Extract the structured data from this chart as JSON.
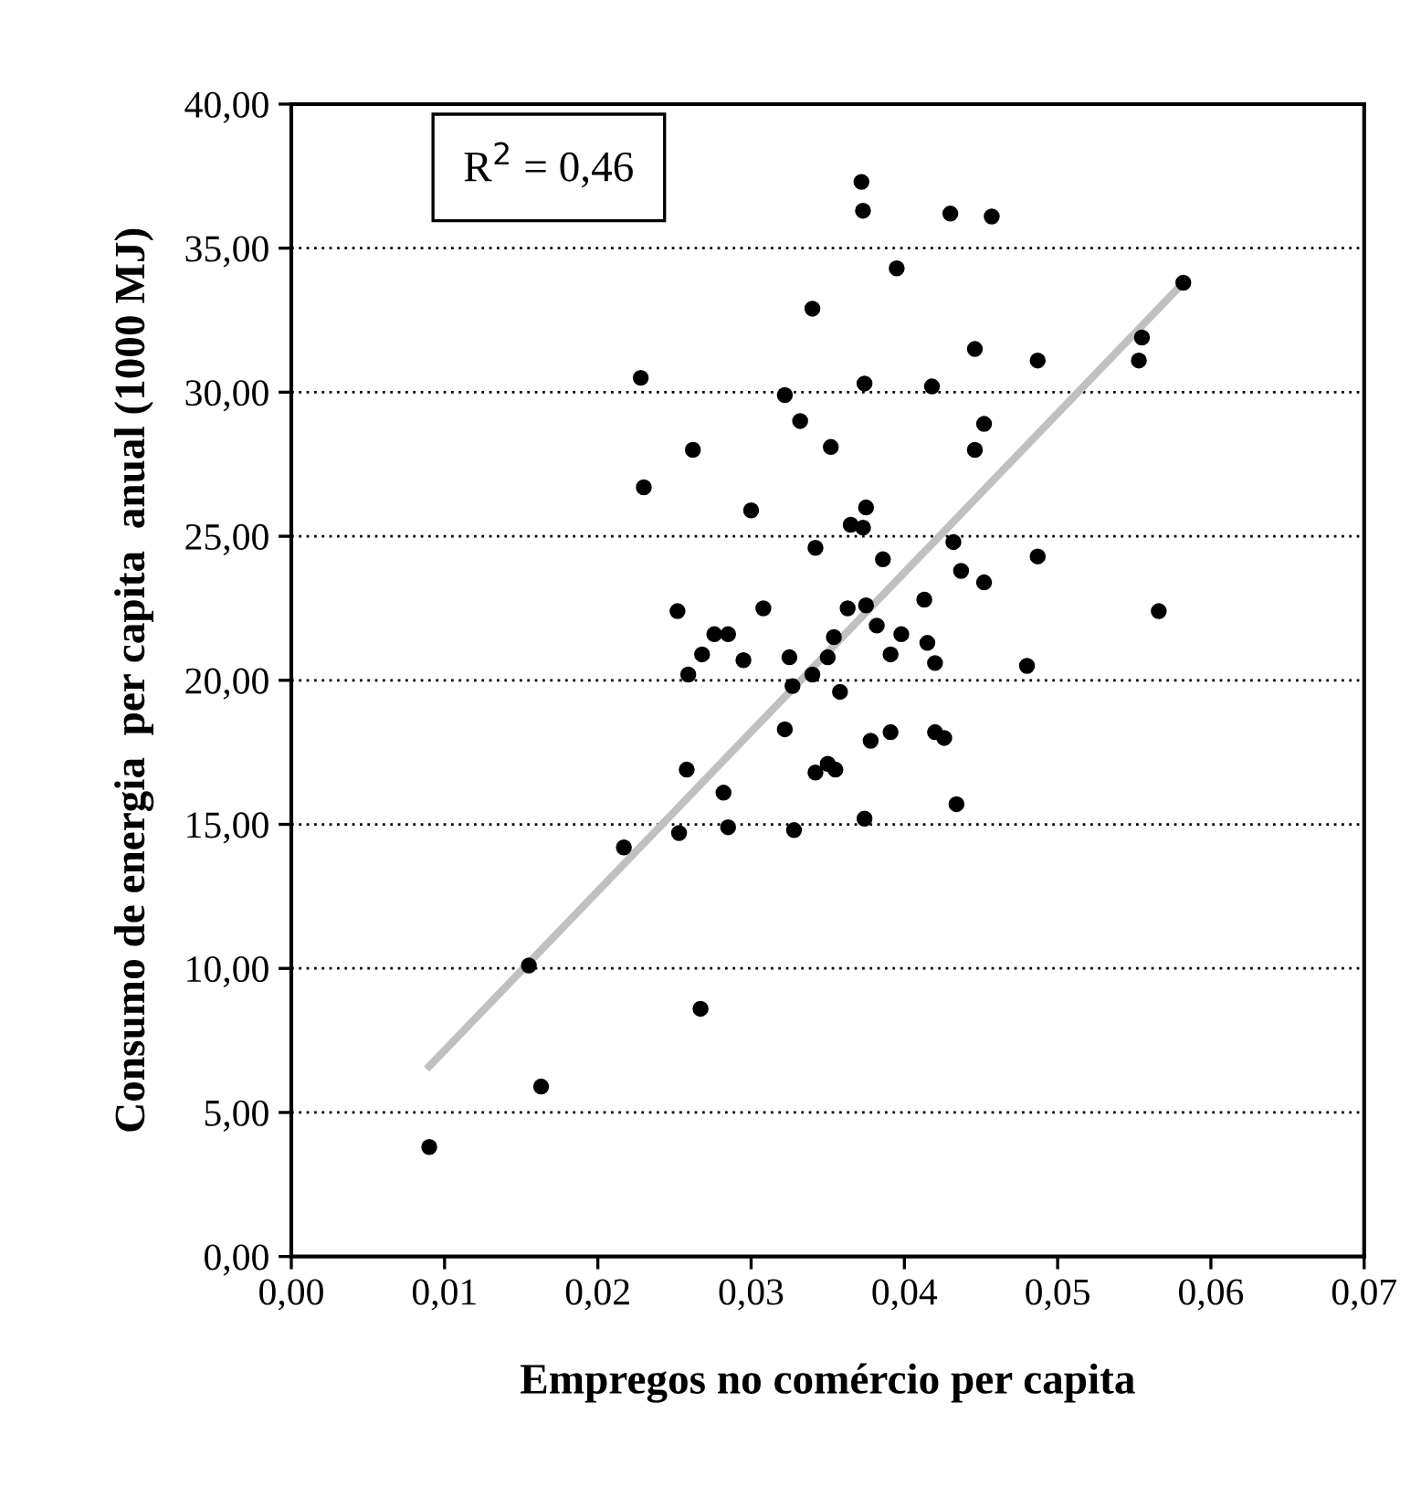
{
  "chart_data": {
    "type": "scatter",
    "xlabel": "Empregos no comércio per capita",
    "ylabel": "Consumo de energia  per capita  anual (1000 MJ)",
    "annotations": [
      "R$^{2}$ = 0,46"
    ],
    "xlim": [
      0,
      0.07
    ],
    "xticks": [
      {
        "value": 0,
        "label": "0,00"
      },
      {
        "value": 0.01,
        "label": "0,01"
      },
      {
        "value": 0.02,
        "label": "0,02"
      },
      {
        "value": 0.03,
        "label": "0,03"
      },
      {
        "value": 0.04,
        "label": "0,04"
      },
      {
        "value": 0.05,
        "label": "0,05"
      },
      {
        "value": 0.06,
        "label": "0,06"
      },
      {
        "value": 0.07,
        "label": "0,07"
      }
    ],
    "ylim": [
      0,
      40
    ],
    "yticks": [
      {
        "value": 0,
        "label": "0,00"
      },
      {
        "value": 5,
        "label": "5,00"
      },
      {
        "value": 10,
        "label": "10,00"
      },
      {
        "value": 15,
        "label": "15,00"
      },
      {
        "value": 20,
        "label": "20,00"
      },
      {
        "value": 25,
        "label": "25,00"
      },
      {
        "value": 30,
        "label": "30,00"
      },
      {
        "value": 35,
        "label": "35,00"
      },
      {
        "value": 40,
        "label": "40,00"
      }
    ],
    "grid": "y",
    "marker": "circle",
    "series": [
      {
        "color": "#000000",
        "x": [
          0.009,
          0.0163,
          0.0155,
          0.0267,
          0.0217,
          0.0253,
          0.0258,
          0.0259,
          0.0252,
          0.0268,
          0.0276,
          0.0285,
          0.0282,
          0.0285,
          0.0295,
          0.0308,
          0.03,
          0.0228,
          0.023,
          0.0262,
          0.0322,
          0.0332,
          0.034,
          0.0352,
          0.0342,
          0.0325,
          0.0322,
          0.0328,
          0.0327,
          0.034,
          0.0342,
          0.035,
          0.035,
          0.0355,
          0.0354,
          0.0358,
          0.0363,
          0.0365,
          0.0372,
          0.0373,
          0.0374,
          0.0375,
          0.0373,
          0.0375,
          0.0374,
          0.0378,
          0.0382,
          0.0386,
          0.0391,
          0.0391,
          0.0395,
          0.0398,
          0.0413,
          0.0415,
          0.0418,
          0.042,
          0.042,
          0.0426,
          0.043,
          0.0432,
          0.0434,
          0.0437,
          0.0446,
          0.0446,
          0.0452,
          0.0452,
          0.0457,
          0.048,
          0.0487,
          0.0487,
          0.0553,
          0.0555,
          0.0566,
          0.0582
        ],
        "values": [
          3.8,
          5.9,
          10.1,
          8.6,
          14.2,
          14.7,
          16.9,
          20.2,
          22.4,
          20.9,
          21.6,
          21.6,
          16.1,
          14.9,
          20.7,
          22.5,
          25.9,
          30.5,
          26.7,
          28.0,
          29.9,
          29.0,
          32.9,
          28.1,
          24.6,
          20.8,
          18.3,
          14.8,
          19.8,
          20.2,
          16.8,
          20.8,
          17.1,
          16.9,
          21.5,
          19.6,
          22.5,
          25.4,
          37.3,
          36.3,
          30.3,
          22.6,
          25.3,
          26.0,
          15.2,
          17.9,
          21.9,
          24.2,
          20.9,
          18.2,
          34.3,
          21.6,
          22.8,
          21.3,
          30.2,
          20.6,
          18.2,
          18.0,
          36.2,
          24.8,
          15.7,
          23.8,
          28.0,
          31.5,
          23.4,
          28.9,
          36.1,
          20.5,
          31.1,
          24.3,
          31.1,
          31.9,
          22.4,
          33.8
        ]
      },
      {
        "type": "line",
        "color": "#c0c0c0",
        "marker": "none",
        "x": [
          0.009,
          0.0582
        ],
        "values": [
          6.6,
          33.8
        ]
      }
    ]
  }
}
